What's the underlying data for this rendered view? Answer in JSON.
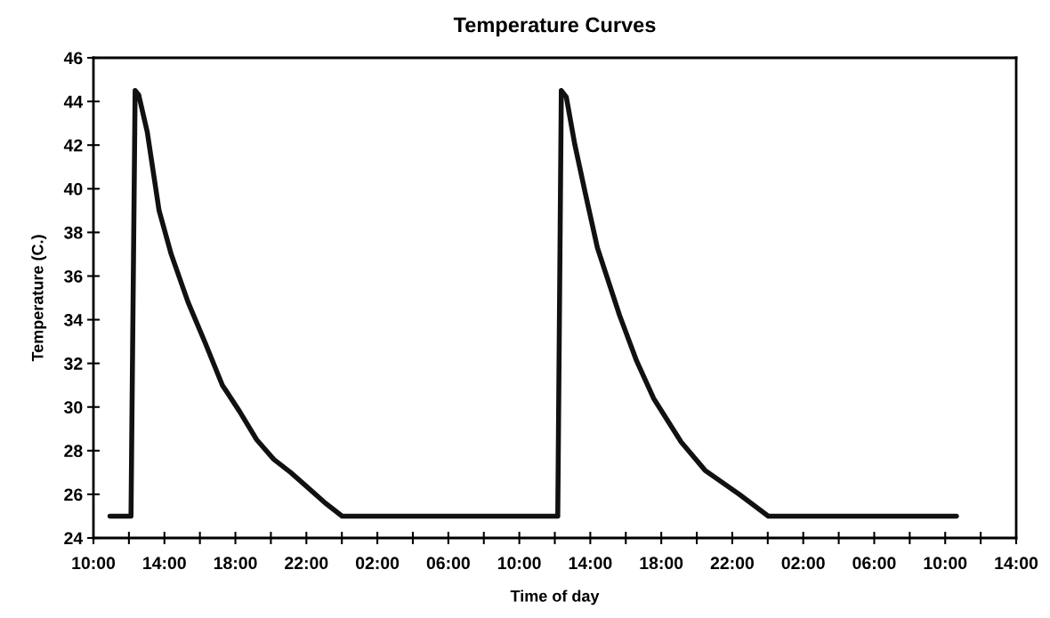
{
  "chart_data": {
    "type": "line",
    "title": "Temperature Curves",
    "xlabel": "Time of day",
    "ylabel": "Temperature (C.)",
    "x": [
      "2000-01-01T10:56",
      "2000-01-01T12:07",
      "2000-01-01T12:21",
      "2000-01-01T12:33",
      "2000-01-01T13:02",
      "2000-01-01T13:42",
      "2000-01-01T14:23",
      "2000-01-01T15:20",
      "2000-01-01T16:19",
      "2000-01-01T17:16",
      "2000-01-01T18:14",
      "2000-01-01T19:12",
      "2000-01-01T20:10",
      "2000-01-01T21:07",
      "2000-01-01T22:06",
      "2000-01-01T23:04",
      "2000-01-02T00:01",
      "2000-01-02T12:10",
      "2000-01-02T12:22",
      "2000-01-02T12:39",
      "2000-01-02T13:08",
      "2000-01-02T13:43",
      "2000-01-02T14:24",
      "2000-01-02T15:39",
      "2000-01-02T16:37",
      "2000-01-02T17:34",
      "2000-01-02T19:07",
      "2000-01-02T20:28",
      "2000-01-02T22:24",
      "2000-01-03T00:02",
      "2000-01-03T10:38"
    ],
    "series": [
      {
        "color": "#111111",
        "values": [
          25,
          25,
          44.5,
          44.3,
          42.6,
          39.0,
          37.0,
          34.8,
          32.9,
          31.0,
          29.8,
          28.5,
          27.6,
          27.0,
          26.3,
          25.6,
          25,
          25,
          44.5,
          44.2,
          42.0,
          39.8,
          37.3,
          34.2,
          32.1,
          30.4,
          28.4,
          27.1,
          26.0,
          25,
          25
        ]
      }
    ],
    "xlim": [
      "2000-01-01T10:00",
      "2000-01-03T14:00"
    ],
    "xticks": [
      {
        "value": "2000-01-01T10:00",
        "label": "10:00"
      },
      {
        "value": "2000-01-01T12:00",
        "label": null
      },
      {
        "value": "2000-01-01T14:00",
        "label": "14:00"
      },
      {
        "value": "2000-01-01T16:00",
        "label": null
      },
      {
        "value": "2000-01-01T18:00",
        "label": "18:00"
      },
      {
        "value": "2000-01-01T20:00",
        "label": null
      },
      {
        "value": "2000-01-01T22:00",
        "label": "22:00"
      },
      {
        "value": "2000-01-02T00:00",
        "label": null
      },
      {
        "value": "2000-01-02T02:00",
        "label": "02:00"
      },
      {
        "value": "2000-01-02T04:00",
        "label": null
      },
      {
        "value": "2000-01-02T06:00",
        "label": "06:00"
      },
      {
        "value": "2000-01-02T08:00",
        "label": null
      },
      {
        "value": "2000-01-02T10:00",
        "label": "10:00"
      },
      {
        "value": "2000-01-02T12:00",
        "label": null
      },
      {
        "value": "2000-01-02T14:00",
        "label": "14:00"
      },
      {
        "value": "2000-01-02T16:00",
        "label": null
      },
      {
        "value": "2000-01-02T18:00",
        "label": "18:00"
      },
      {
        "value": "2000-01-02T20:00",
        "label": null
      },
      {
        "value": "2000-01-02T22:00",
        "label": "22:00"
      },
      {
        "value": "2000-01-03T00:00",
        "label": null
      },
      {
        "value": "2000-01-03T02:00",
        "label": "02:00"
      },
      {
        "value": "2000-01-03T04:00",
        "label": null
      },
      {
        "value": "2000-01-03T06:00",
        "label": "06:00"
      },
      {
        "value": "2000-01-03T08:00",
        "label": null
      },
      {
        "value": "2000-01-03T10:00",
        "label": "10:00"
      },
      {
        "value": "2000-01-03T12:00",
        "label": null
      },
      {
        "value": "2000-01-03T14:00",
        "label": "14:00"
      }
    ],
    "ylim": [
      24,
      46
    ],
    "yticks": [
      24,
      26,
      28,
      30,
      32,
      34,
      36,
      38,
      40,
      42,
      44,
      46
    ],
    "grid": false,
    "legend": false,
    "marker": "none",
    "line_style": "solid"
  }
}
